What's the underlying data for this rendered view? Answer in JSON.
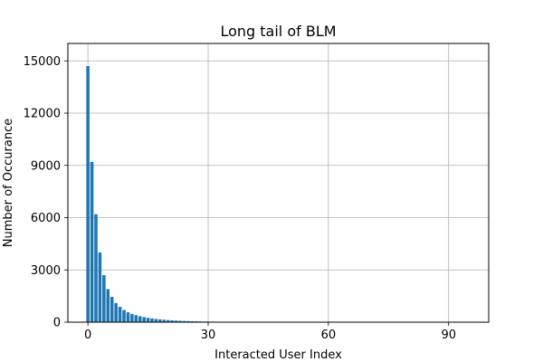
{
  "chart_data": {
    "type": "bar",
    "title": "Long tail of BLM",
    "xlabel": "Interacted User Index",
    "ylabel": "Number of Occurance",
    "xlim": [
      -5,
      100
    ],
    "ylim": [
      0,
      16000
    ],
    "xticks": [
      0,
      30,
      60,
      90
    ],
    "yticks": [
      0,
      3000,
      6000,
      9000,
      12000,
      15000
    ],
    "grid": true,
    "bar_color": "#1f77b4",
    "x": [
      0,
      1,
      2,
      3,
      4,
      5,
      6,
      7,
      8,
      9,
      10,
      11,
      12,
      13,
      14,
      15,
      16,
      17,
      18,
      19,
      20,
      21,
      22,
      23,
      24,
      25,
      26,
      27,
      28,
      29,
      30,
      31,
      32,
      33,
      34,
      35,
      36,
      37,
      38,
      39,
      40,
      41,
      42,
      43,
      44,
      45,
      46,
      47,
      48,
      49,
      50,
      51,
      52,
      53,
      54,
      55,
      56,
      57,
      58,
      59,
      60,
      61,
      62,
      63,
      64,
      65,
      66,
      67,
      68,
      69,
      70,
      71,
      72,
      73,
      74,
      75,
      76,
      77,
      78,
      79,
      80,
      81,
      82,
      83,
      84,
      85,
      86,
      87,
      88,
      89,
      90,
      91,
      92,
      93,
      94,
      95
    ],
    "values": [
      14700,
      9200,
      6200,
      4000,
      2700,
      1900,
      1450,
      1100,
      880,
      700,
      570,
      470,
      400,
      340,
      290,
      250,
      215,
      185,
      160,
      140,
      120,
      105,
      92,
      80,
      70,
      62,
      55,
      48,
      42,
      37,
      33,
      29,
      26,
      23,
      20,
      18,
      16,
      14,
      13,
      12,
      11,
      10,
      9,
      8,
      8,
      7,
      7,
      6,
      6,
      5,
      5,
      5,
      4,
      4,
      4,
      4,
      3,
      3,
      3,
      3,
      3,
      3,
      2,
      2,
      2,
      2,
      2,
      2,
      2,
      2,
      2,
      2,
      1,
      1,
      1,
      1,
      1,
      1,
      1,
      1,
      1,
      1,
      1,
      1,
      1,
      1,
      1,
      1,
      1,
      1,
      1,
      1,
      1,
      1,
      1,
      1
    ]
  }
}
